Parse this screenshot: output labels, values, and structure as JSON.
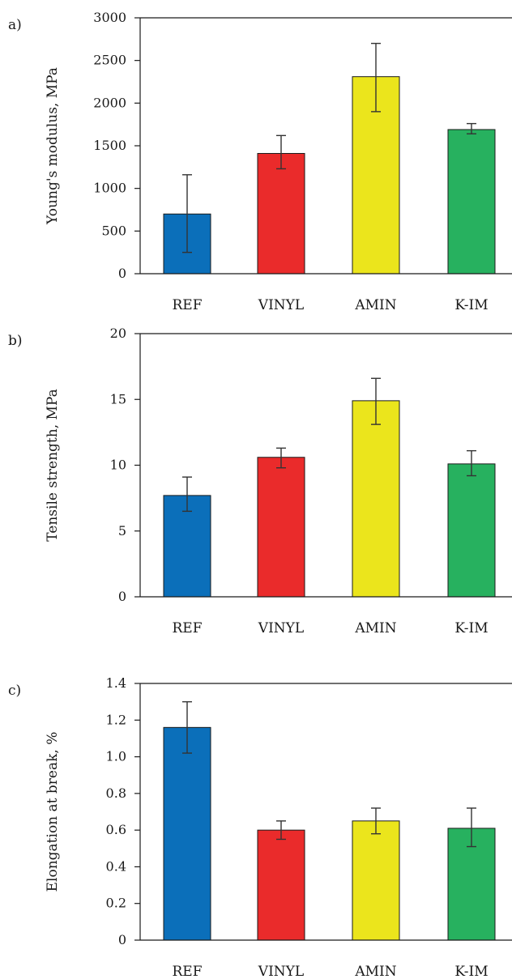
{
  "chart_data": [
    {
      "panel_label": "a)",
      "type": "bar",
      "ylabel": "Young's modulus, MPa",
      "categories": [
        "REF",
        "VINYL",
        "AMIN",
        "K-IM"
      ],
      "values": [
        700,
        1410,
        2310,
        1690
      ],
      "errors": [
        [
          250,
          1160
        ],
        [
          1230,
          1620
        ],
        [
          1900,
          2700
        ],
        [
          1640,
          1760
        ]
      ],
      "ylim": [
        0,
        3000
      ],
      "yticks": [
        0,
        500,
        1000,
        1500,
        2000,
        2500,
        3000
      ],
      "ytick_labels": [
        "0",
        "500",
        "1000",
        "1500",
        "2000",
        "2500",
        "3000"
      ],
      "grid": false
    },
    {
      "panel_label": "b)",
      "type": "bar",
      "ylabel": "Tensile strength, MPa",
      "categories": [
        "REF",
        "VINYL",
        "AMIN",
        "K-IM"
      ],
      "values": [
        7.7,
        10.6,
        14.9,
        10.1
      ],
      "errors": [
        [
          6.5,
          9.1
        ],
        [
          9.8,
          11.3
        ],
        [
          13.1,
          16.6
        ],
        [
          9.2,
          11.1
        ]
      ],
      "ylim": [
        0,
        20
      ],
      "yticks": [
        0,
        5,
        10,
        15,
        20
      ],
      "ytick_labels": [
        "0",
        "5",
        "10",
        "15",
        "20"
      ],
      "grid": false
    },
    {
      "panel_label": "c)",
      "type": "bar",
      "ylabel": "Elongation at break, %",
      "categories": [
        "REF",
        "VINYL",
        "AMIN",
        "K-IM"
      ],
      "values": [
        1.16,
        0.6,
        0.65,
        0.61
      ],
      "errors": [
        [
          1.02,
          1.3
        ],
        [
          0.55,
          0.65
        ],
        [
          0.58,
          0.72
        ],
        [
          0.51,
          0.72
        ]
      ],
      "ylim": [
        0,
        1.4
      ],
      "yticks": [
        0,
        0.2,
        0.4,
        0.6,
        0.8,
        1.0,
        1.2,
        1.4
      ],
      "ytick_labels": [
        "0",
        "0.2",
        "0.4",
        "0.6",
        "0.8",
        "1.0",
        "1.2",
        "1.4"
      ],
      "grid": false
    }
  ],
  "colors": {
    "REF": "#0b6fba",
    "VINYL": "#ea2b2b",
    "AMIN": "#ebe51c",
    "K-IM": "#27b15f",
    "axis": "#1a1a1a",
    "error_bar": "#333333"
  }
}
